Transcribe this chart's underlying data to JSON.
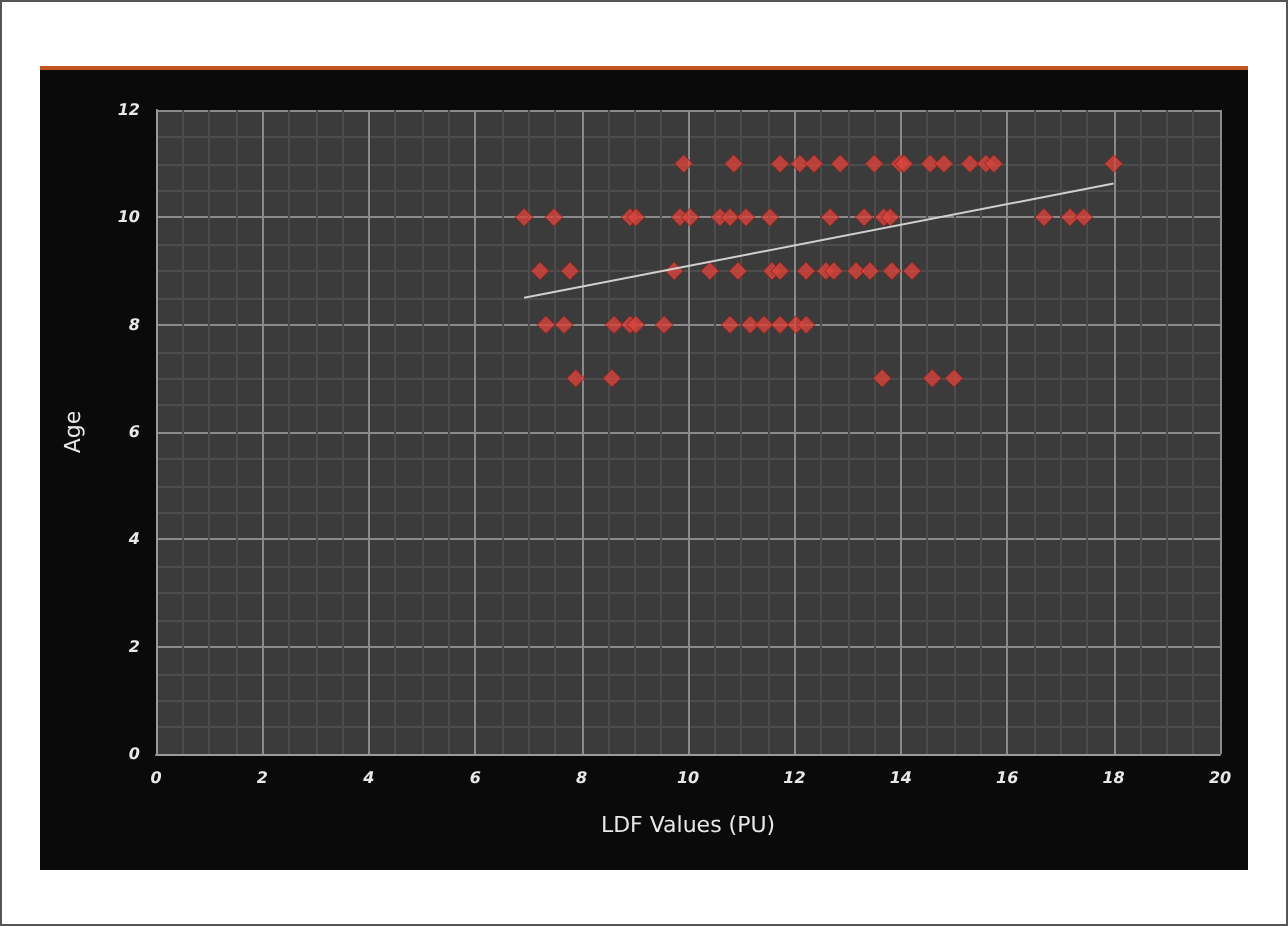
{
  "chart_data": {
    "type": "scatter",
    "xlabel": "LDF Values (PU)",
    "ylabel": "Age",
    "xlim": [
      0,
      20
    ],
    "xticks": [
      0,
      2,
      4,
      6,
      8,
      10,
      12,
      14,
      16,
      18,
      20
    ],
    "ylim": [
      0,
      12
    ],
    "yticks": [
      0,
      2,
      4,
      6,
      8,
      10,
      12
    ],
    "grid": true,
    "marker": "diamond",
    "series": [
      {
        "color": "#d8453c",
        "x": [
          9.92,
          10.86,
          11.73,
          12.1,
          12.37,
          12.86,
          13.5,
          13.98,
          14.06,
          14.55,
          14.81,
          15.3,
          15.6,
          15.75,
          18.0,
          6.92,
          7.48,
          8.91,
          9.02,
          9.85,
          10.04,
          10.6,
          10.79,
          11.09,
          11.54,
          12.67,
          13.31,
          13.68,
          13.8,
          16.69,
          17.18,
          17.44,
          7.22,
          7.78,
          9.74,
          10.41,
          10.94,
          11.58,
          11.73,
          12.22,
          12.59,
          12.74,
          13.16,
          13.42,
          13.83,
          14.21,
          7.33,
          7.67,
          8.61,
          8.91,
          9.02,
          9.55,
          10.79,
          11.17,
          11.43,
          11.73,
          12.03,
          12.22,
          7.89,
          8.57,
          13.65,
          14.59,
          15.0
        ],
        "values": [
          11,
          11,
          11,
          11,
          11,
          11,
          11,
          11,
          11,
          11,
          11,
          11,
          11,
          11,
          11,
          10,
          10,
          10,
          10,
          10,
          10,
          10,
          10,
          10,
          10,
          10,
          10,
          10,
          10,
          10,
          10,
          10,
          9,
          9,
          9,
          9,
          9,
          9,
          9,
          9,
          9,
          9,
          9,
          9,
          9,
          9,
          8,
          8,
          8,
          8,
          8,
          8,
          8,
          8,
          8,
          8,
          8,
          8,
          7,
          7,
          7,
          7,
          7
        ]
      },
      {
        "type": "line",
        "color": "#d0d0d0",
        "marker": "none",
        "line_style": "solid",
        "x": [
          6.92,
          18.0
        ],
        "values": [
          8.5,
          10.63
        ]
      }
    ]
  }
}
